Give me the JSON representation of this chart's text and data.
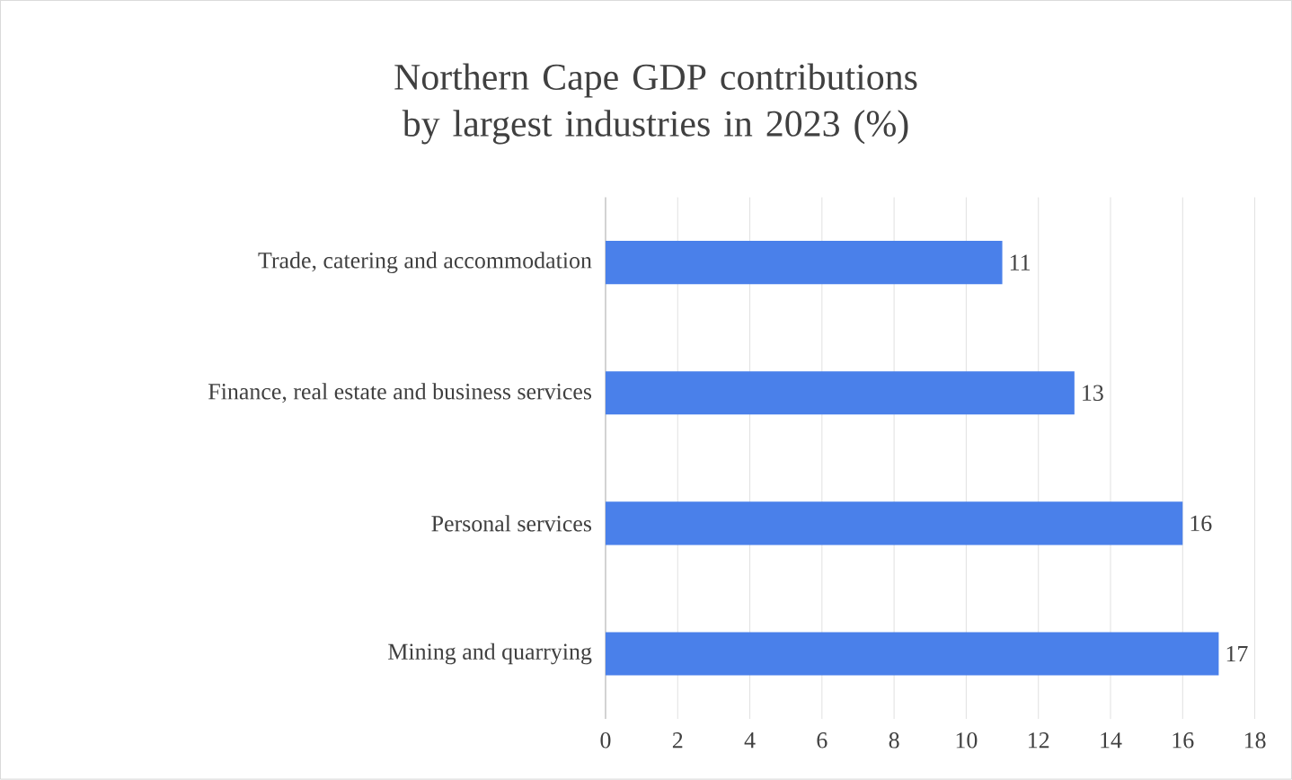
{
  "chart_data": {
    "type": "bar",
    "orientation": "horizontal",
    "title": "Northern Cape GDP contributions by largest industries in 2023 (%)",
    "categories": [
      "Trade, catering and accommodation",
      "Finance, real estate and business services",
      "Personal services",
      "Mining and quarrying"
    ],
    "values": [
      11,
      13,
      16,
      17
    ],
    "color": "#4a80ea",
    "xlim": [
      0,
      18
    ],
    "xticks": [
      0,
      2,
      4,
      6,
      8,
      10,
      12,
      14,
      16,
      18
    ],
    "grid": "x",
    "data_labels": true
  }
}
